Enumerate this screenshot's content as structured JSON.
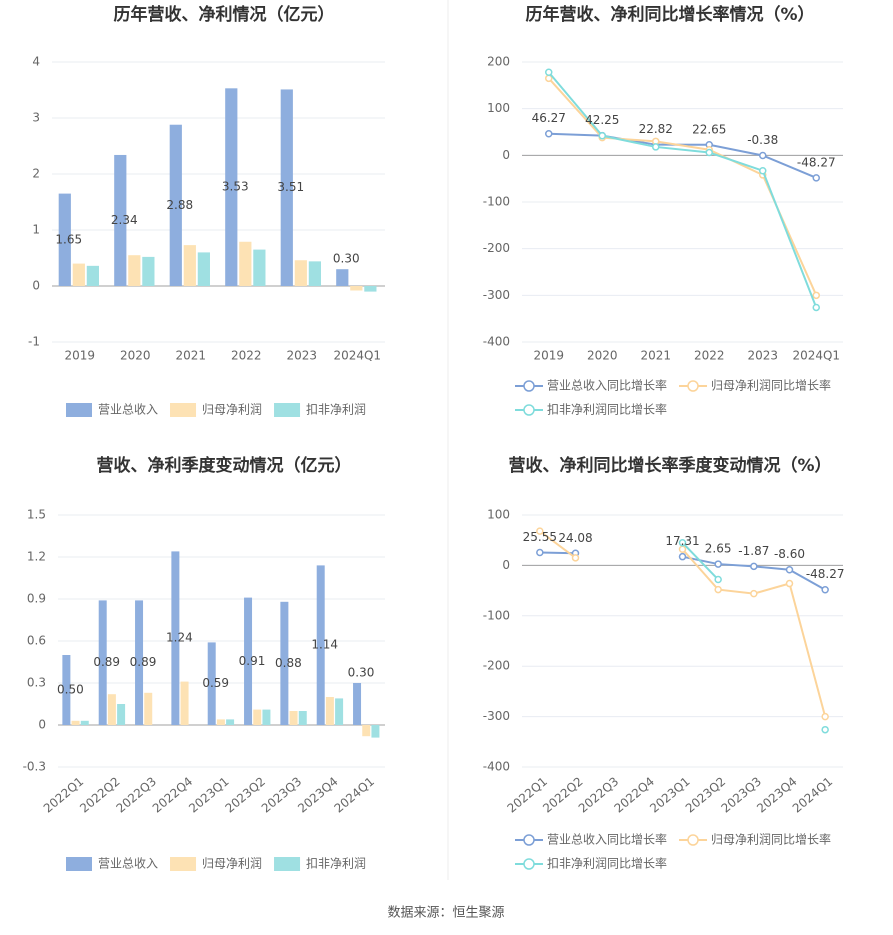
{
  "chart_data": [
    {
      "type": "bar",
      "title": "历年营收、净利情况（亿元）",
      "categories": [
        "2019",
        "2020",
        "2021",
        "2022",
        "2023",
        "2024Q1"
      ],
      "series": [
        {
          "name": "营业总收入",
          "color": "#8eaede",
          "values": [
            1.65,
            2.34,
            2.88,
            3.53,
            3.51,
            0.3
          ],
          "value_labels": [
            "1.65",
            "2.34",
            "2.88",
            "3.53",
            "3.51",
            "0.30"
          ]
        },
        {
          "name": "归母净利润",
          "color": "#fde2b4",
          "values": [
            0.4,
            0.55,
            0.73,
            0.79,
            0.46,
            -0.08
          ]
        },
        {
          "name": "扣非净利润",
          "color": "#9fe0e2",
          "values": [
            0.36,
            0.52,
            0.6,
            0.65,
            0.44,
            -0.1
          ]
        }
      ],
      "ylim": [
        -1,
        4
      ],
      "yticks": [
        -1,
        0,
        1,
        2,
        3,
        4
      ],
      "grid": true,
      "legend": "bottom"
    },
    {
      "type": "line",
      "title": "历年营收、净利同比增长率情况（%）",
      "categories": [
        "2019",
        "2020",
        "2021",
        "2022",
        "2023",
        "2024Q1"
      ],
      "series": [
        {
          "name": "营业总收入同比增长率",
          "color": "#7c9fd6",
          "values": [
            46.27,
            42.25,
            22.82,
            22.65,
            -0.38,
            -48.27
          ],
          "show_labels": true
        },
        {
          "name": "归母净利润同比增长率",
          "color": "#fcd49a",
          "values": [
            165,
            38,
            30,
            12,
            -42,
            -300
          ]
        },
        {
          "name": "扣非净利润同比增长率",
          "color": "#7fdcdc",
          "values": [
            178,
            42,
            18,
            6,
            -33,
            -326
          ]
        }
      ],
      "ylim": [
        -400,
        200
      ],
      "yticks": [
        -400,
        -300,
        -200,
        -100,
        0,
        100,
        200
      ],
      "grid": true,
      "legend": "bottom"
    },
    {
      "type": "bar",
      "title": "营收、净利季度变动情况（亿元）",
      "categories": [
        "2022Q1",
        "2022Q2",
        "2022Q3",
        "2022Q4",
        "2023Q1",
        "2023Q2",
        "2023Q3",
        "2023Q4",
        "2024Q1"
      ],
      "series": [
        {
          "name": "营业总收入",
          "color": "#8eaede",
          "values": [
            0.5,
            0.89,
            0.89,
            1.24,
            0.59,
            0.91,
            0.88,
            1.14,
            0.3
          ],
          "value_labels": [
            "0.50",
            "0.89",
            "0.89",
            "1.24",
            "0.59",
            "0.91",
            "0.88",
            "1.14",
            "0.30"
          ]
        },
        {
          "name": "归母净利润",
          "color": "#fde2b4",
          "values": [
            0.03,
            0.22,
            0.23,
            0.31,
            0.04,
            0.11,
            0.1,
            0.2,
            -0.08
          ]
        },
        {
          "name": "扣非净利润",
          "color": "#9fe0e2",
          "values": [
            0.03,
            0.15,
            null,
            null,
            0.04,
            0.11,
            0.1,
            0.19,
            -0.09
          ]
        }
      ],
      "ylim": [
        -0.3,
        1.5
      ],
      "yticks": [
        -0.3,
        0,
        0.3,
        0.6,
        0.9,
        1.2,
        1.5
      ],
      "grid": true,
      "legend": "bottom"
    },
    {
      "type": "line",
      "title": "营收、净利同比增长率季度变动情况（%）",
      "categories": [
        "2022Q1",
        "2022Q2",
        "2022Q3",
        "2022Q4",
        "2023Q1",
        "2023Q2",
        "2023Q3",
        "2023Q4",
        "2024Q1"
      ],
      "series": [
        {
          "name": "营业总收入同比增长率",
          "color": "#7c9fd6",
          "values": [
            25.55,
            24.08,
            null,
            null,
            17.31,
            2.65,
            -1.87,
            -8.6,
            -48.27
          ],
          "value_labels": [
            "25.55",
            "24.08",
            null,
            null,
            "17.31",
            "2.65",
            "-1.87",
            "-8.60",
            "-48.27"
          ]
        },
        {
          "name": "归母净利润同比增长率",
          "color": "#fcd49a",
          "values": [
            68,
            15,
            null,
            null,
            32,
            -48,
            -56,
            -36,
            -300
          ]
        },
        {
          "name": "扣非净利润同比增长率",
          "color": "#7fdcdc",
          "values": [
            null,
            null,
            null,
            null,
            45,
            -28,
            null,
            null,
            -326
          ]
        }
      ],
      "ylim": [
        -400,
        100
      ],
      "yticks": [
        -400,
        -300,
        -200,
        -100,
        0,
        100
      ],
      "grid": true,
      "legend": "bottom"
    }
  ],
  "source": "数据来源：恒生聚源"
}
